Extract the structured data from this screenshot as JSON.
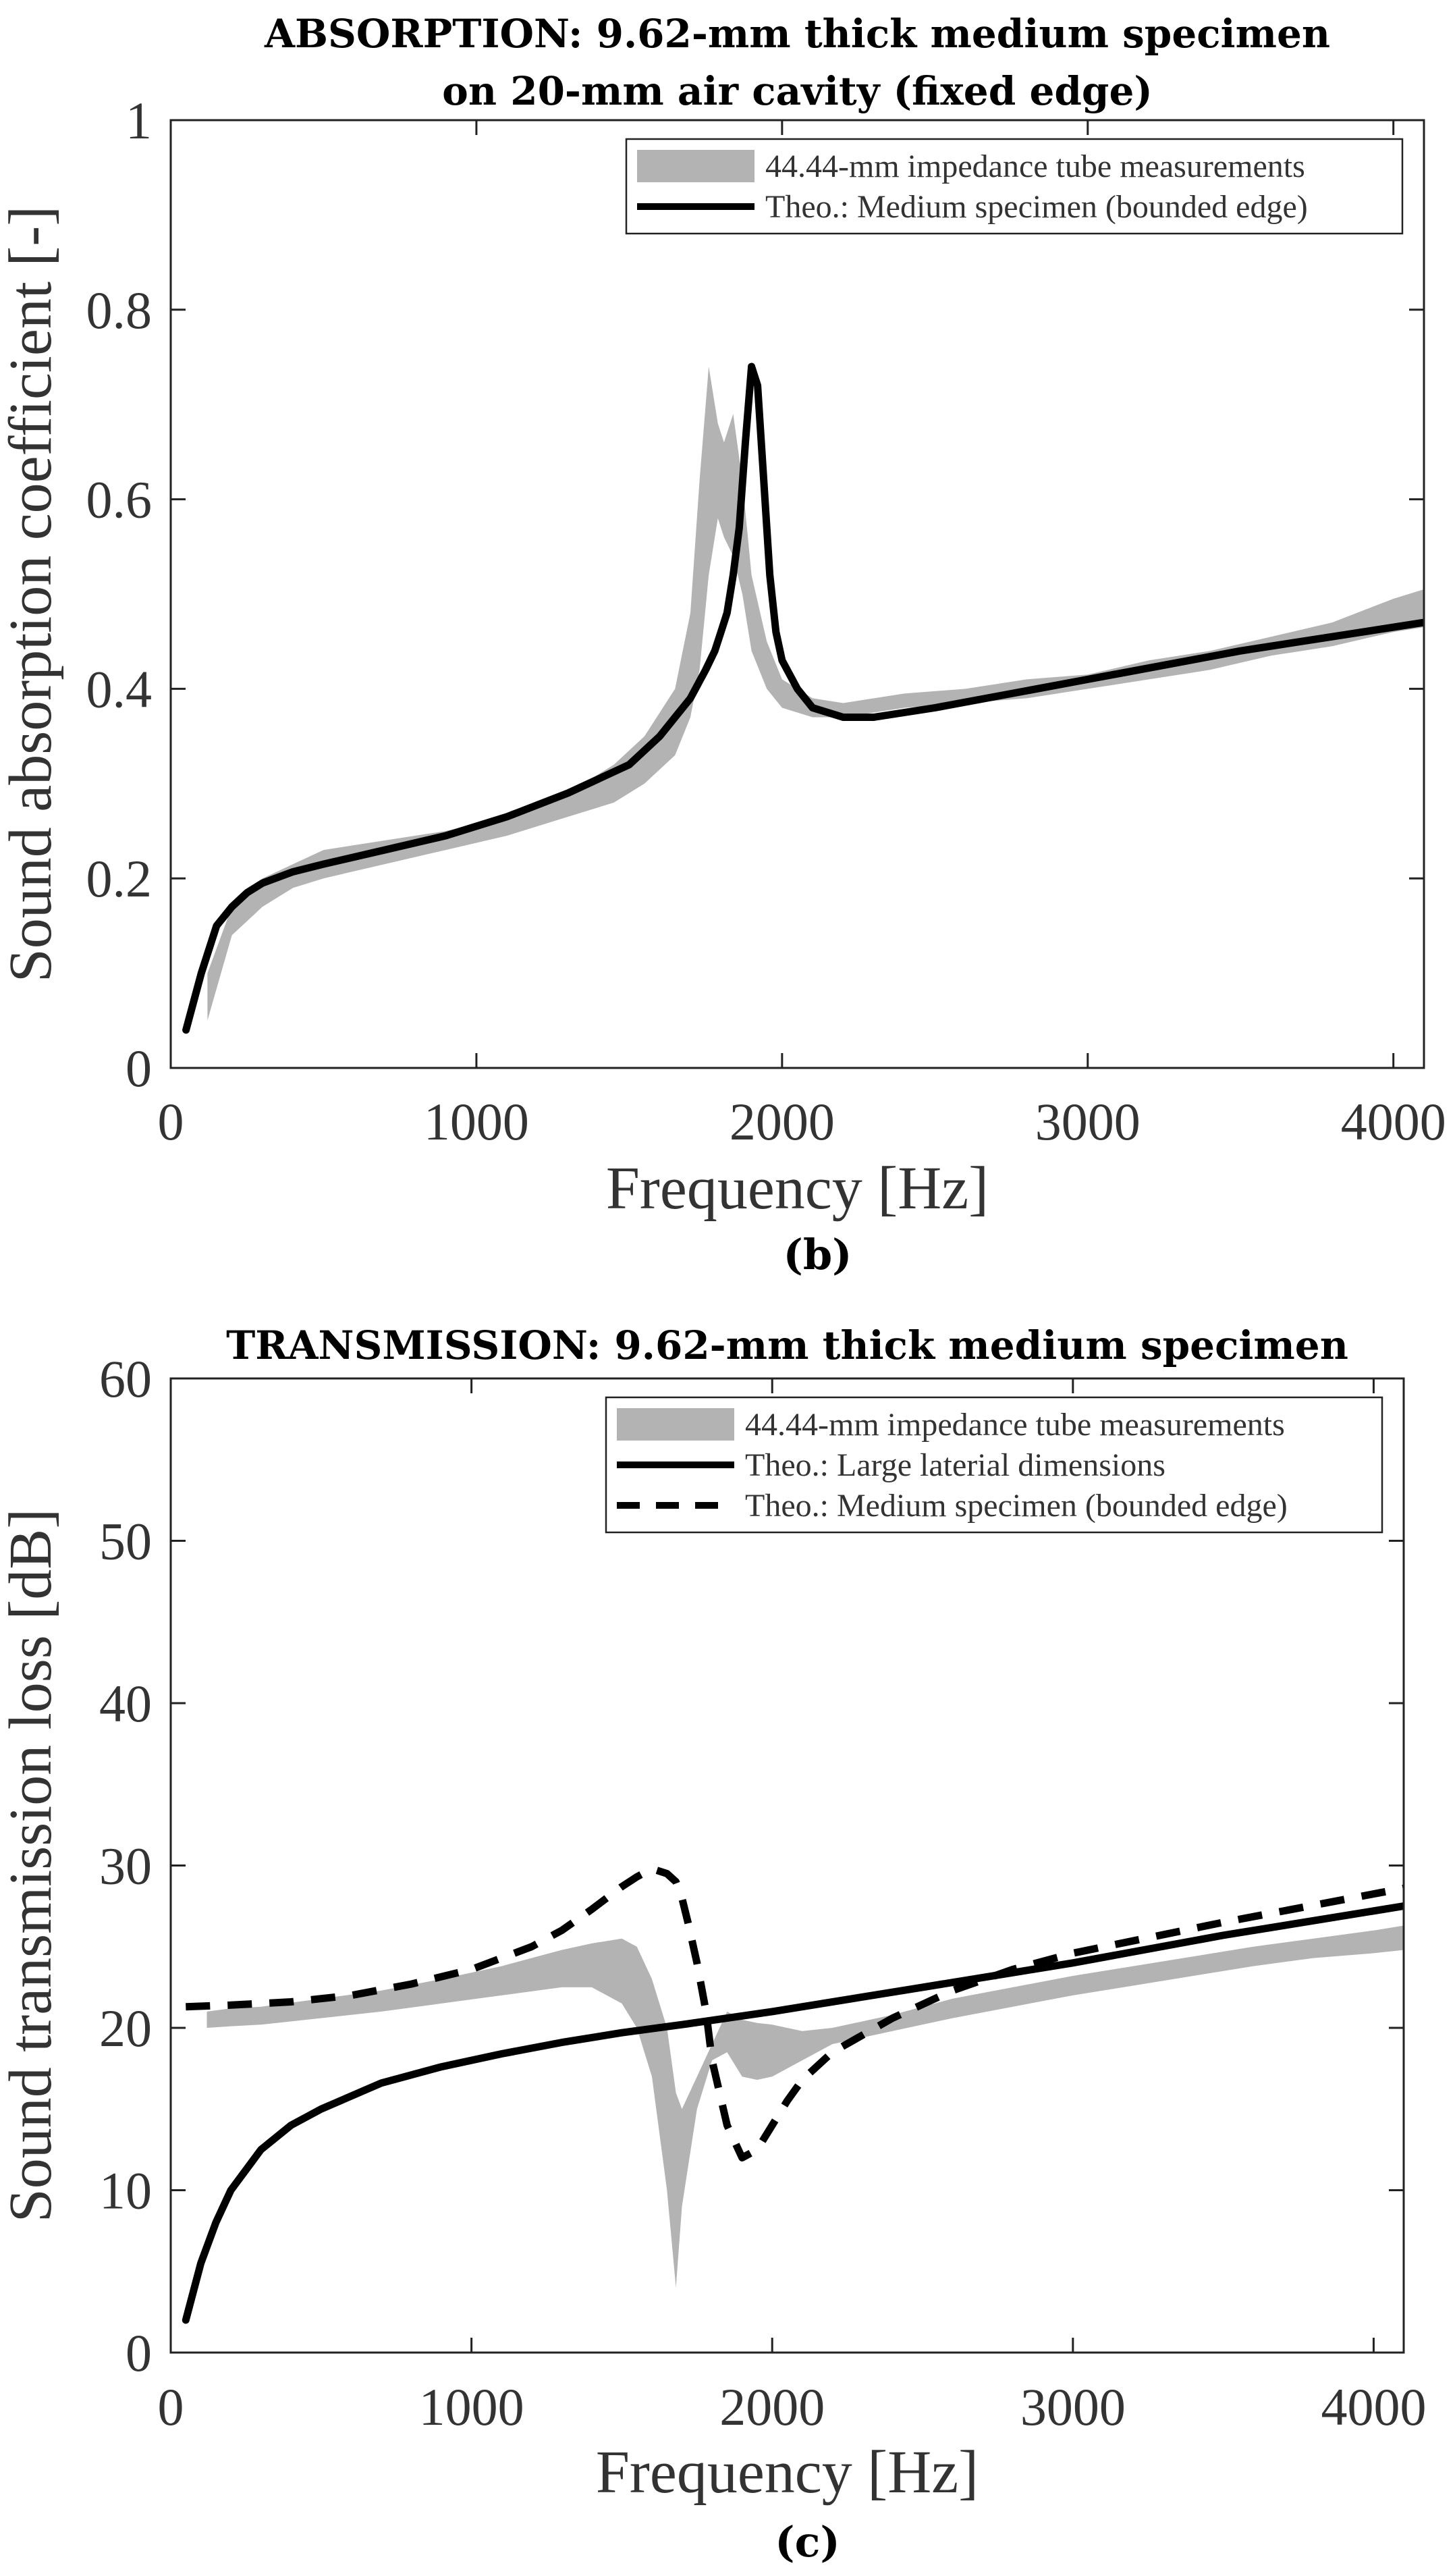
{
  "chart_data": [
    {
      "type": "line",
      "title": [
        "ABSORPTION: 9.62-mm thick medium specimen",
        "on 20-mm air cavity (fixed edge)"
      ],
      "xlabel": "Frequency [Hz]",
      "ylabel": "Sound absorption coefficient [-]",
      "xlim": [
        0,
        4100
      ],
      "ylim": [
        0,
        1
      ],
      "xticks": [
        0,
        1000,
        2000,
        3000,
        4000
      ],
      "xtick_labels": [
        "0",
        "1000",
        "2000",
        "3000",
        "4000"
      ],
      "yticks": [
        0,
        0.2,
        0.4,
        0.6,
        0.8,
        1
      ],
      "ytick_labels": [
        "0",
        "0.2",
        "0.4",
        "0.6",
        "0.8",
        "1"
      ],
      "grid": false,
      "legend_position": "top-right",
      "panel_label": "(b)",
      "series": [
        {
          "name": "44.44-mm impedance tube measurements",
          "style": "band",
          "color": "#b3b3b3",
          "x": [
            120,
            200,
            300,
            400,
            500,
            700,
            900,
            1100,
            1300,
            1450,
            1550,
            1650,
            1700,
            1730,
            1760,
            1790,
            1810,
            1840,
            1870,
            1900,
            1950,
            2000,
            2100,
            2200,
            2400,
            2600,
            2800,
            3000,
            3200,
            3400,
            3600,
            3800,
            4000,
            4100
          ],
          "upper": [
            0.1,
            0.17,
            0.2,
            0.215,
            0.23,
            0.24,
            0.25,
            0.265,
            0.29,
            0.32,
            0.35,
            0.4,
            0.48,
            0.62,
            0.74,
            0.68,
            0.66,
            0.69,
            0.62,
            0.52,
            0.45,
            0.41,
            0.39,
            0.385,
            0.395,
            0.4,
            0.41,
            0.415,
            0.43,
            0.44,
            0.455,
            0.47,
            0.495,
            0.505
          ],
          "lower": [
            0.05,
            0.14,
            0.17,
            0.19,
            0.2,
            0.215,
            0.23,
            0.245,
            0.265,
            0.28,
            0.3,
            0.33,
            0.37,
            0.42,
            0.52,
            0.58,
            0.56,
            0.54,
            0.5,
            0.44,
            0.4,
            0.38,
            0.37,
            0.37,
            0.38,
            0.385,
            0.39,
            0.4,
            0.41,
            0.42,
            0.435,
            0.445,
            0.46,
            0.465
          ]
        },
        {
          "name": "Theo.: Medium specimen (bounded edge)",
          "style": "solid",
          "color": "#000000",
          "x": [
            50,
            100,
            150,
            200,
            250,
            300,
            400,
            500,
            700,
            900,
            1100,
            1300,
            1500,
            1600,
            1650,
            1700,
            1750,
            1780,
            1800,
            1820,
            1840,
            1860,
            1880,
            1900,
            1920,
            1940,
            1960,
            1980,
            2000,
            2050,
            2100,
            2200,
            2300,
            2500,
            3000,
            3500,
            4100
          ],
          "y": [
            0.04,
            0.1,
            0.15,
            0.17,
            0.185,
            0.195,
            0.207,
            0.215,
            0.23,
            0.245,
            0.265,
            0.29,
            0.32,
            0.35,
            0.37,
            0.39,
            0.42,
            0.44,
            0.46,
            0.48,
            0.52,
            0.57,
            0.66,
            0.74,
            0.72,
            0.62,
            0.52,
            0.46,
            0.43,
            0.4,
            0.38,
            0.37,
            0.37,
            0.38,
            0.41,
            0.44,
            0.47
          ]
        }
      ]
    },
    {
      "type": "line",
      "title": [
        "TRANSMISSION: 9.62-mm thick medium specimen"
      ],
      "xlabel": "Frequency [Hz]",
      "ylabel": "Sound transmission loss [dB]",
      "xlim": [
        0,
        4100
      ],
      "ylim": [
        0,
        60
      ],
      "xticks": [
        0,
        1000,
        2000,
        3000,
        4000
      ],
      "xtick_labels": [
        "0",
        "1000",
        "2000",
        "3000",
        "4000"
      ],
      "yticks": [
        0,
        10,
        20,
        30,
        40,
        50,
        60
      ],
      "ytick_labels": [
        "0",
        "10",
        "20",
        "30",
        "40",
        "50",
        "60"
      ],
      "grid": false,
      "legend_position": "top-right",
      "panel_label": "(c)",
      "series": [
        {
          "name": "44.44-mm impedance tube measurements",
          "style": "band",
          "color": "#b3b3b3",
          "x": [
            120,
            200,
            300,
            500,
            700,
            900,
            1100,
            1300,
            1400,
            1500,
            1550,
            1600,
            1650,
            1680,
            1700,
            1750,
            1800,
            1850,
            1900,
            1950,
            2000,
            2050,
            2100,
            2200,
            2400,
            2600,
            2800,
            3000,
            3200,
            3400,
            3600,
            3800,
            4000,
            4100
          ],
          "upper": [
            21,
            21.2,
            21.3,
            21.8,
            22.3,
            23,
            23.8,
            24.8,
            25.2,
            25.5,
            25,
            23,
            20,
            16,
            15,
            17,
            19,
            21,
            20.5,
            20.3,
            20.2,
            20,
            19.8,
            20,
            20.8,
            21.8,
            22.5,
            23.2,
            23.8,
            24.4,
            25,
            25.5,
            26,
            26.3
          ],
          "lower": [
            20,
            20.1,
            20.2,
            20.6,
            21,
            21.5,
            22,
            22.5,
            22.5,
            21.5,
            20,
            17,
            10,
            4,
            9,
            15,
            18,
            18.5,
            17,
            16.8,
            17,
            17.5,
            18,
            19,
            19.8,
            20.6,
            21.3,
            22,
            22.6,
            23.2,
            23.8,
            24.3,
            24.6,
            24.8
          ]
        },
        {
          "name": "Theo.: Large laterial dimensions",
          "style": "solid",
          "color": "#000000",
          "x": [
            50,
            100,
            150,
            200,
            300,
            400,
            500,
            700,
            900,
            1100,
            1300,
            1500,
            1700,
            2000,
            2500,
            3000,
            3500,
            4100
          ],
          "y": [
            2,
            5.5,
            8,
            10,
            12.5,
            14,
            15,
            16.6,
            17.6,
            18.4,
            19.1,
            19.7,
            20.2,
            21,
            22.5,
            24,
            25.7,
            27.5
          ]
        },
        {
          "name": "Theo.: Medium specimen (bounded edge)",
          "style": "dashed",
          "color": "#000000",
          "x": [
            50,
            200,
            400,
            600,
            800,
            1000,
            1200,
            1300,
            1400,
            1450,
            1500,
            1550,
            1600,
            1650,
            1680,
            1700,
            1720,
            1750,
            1780,
            1800,
            1850,
            1900,
            1950,
            2000,
            2050,
            2100,
            2200,
            2400,
            2600,
            2800,
            3000,
            3500,
            4100
          ],
          "y": [
            21.3,
            21.4,
            21.6,
            22,
            22.7,
            23.6,
            25,
            26,
            27.3,
            28,
            28.7,
            29.3,
            29.8,
            29.5,
            29,
            28,
            26.5,
            24,
            21,
            18,
            14,
            12,
            12.5,
            14,
            15.5,
            16.8,
            18.5,
            20.6,
            22.3,
            23.6,
            24.6,
            26.5,
            28.6
          ]
        }
      ]
    }
  ]
}
